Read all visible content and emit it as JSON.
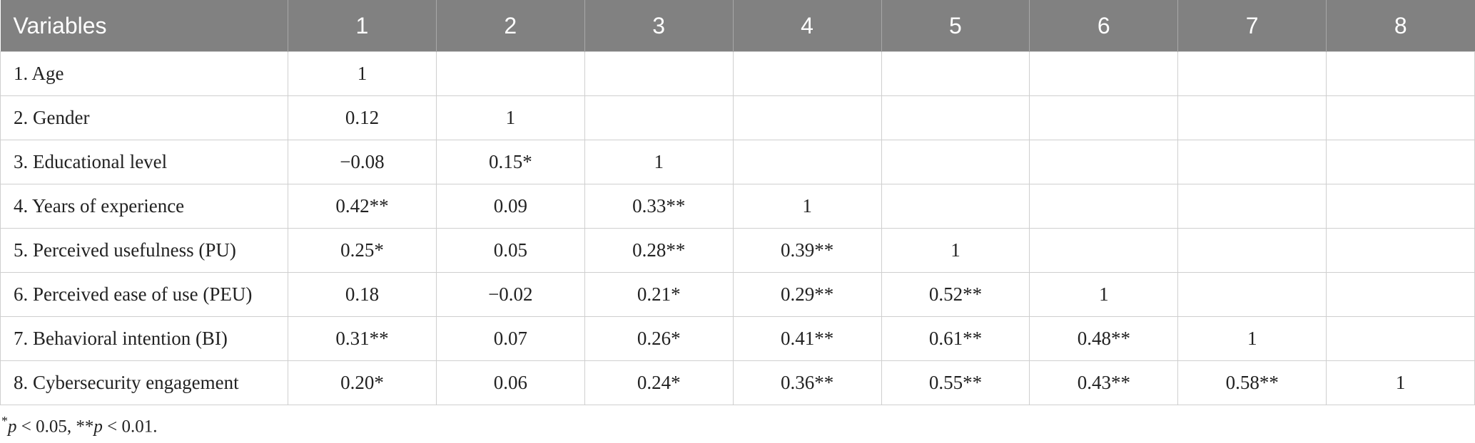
{
  "table": {
    "header": [
      "Variables",
      "1",
      "2",
      "3",
      "4",
      "5",
      "6",
      "7",
      "8"
    ],
    "rows": [
      [
        "1. Age",
        "1"
      ],
      [
        "2. Gender",
        "0.12",
        "1"
      ],
      [
        "3. Educational level",
        "−0.08",
        "0.15*",
        "1"
      ],
      [
        "4. Years of experience",
        "0.42**",
        "0.09",
        "0.33**",
        "1"
      ],
      [
        "5. Perceived usefulness (PU)",
        "0.25*",
        "0.05",
        "0.28**",
        "0.39**",
        "1"
      ],
      [
        "6. Perceived ease of use (PEU)",
        "0.18",
        "−0.02",
        "0.21*",
        "0.29**",
        "0.52**",
        "1"
      ],
      [
        "7. Behavioral intention (BI)",
        "0.31**",
        "0.07",
        "0.26*",
        "0.41**",
        "0.61**",
        "0.48**",
        "1"
      ],
      [
        "8. Cybersecurity engagement",
        "0.20*",
        "0.06",
        "0.24*",
        "0.36**",
        "0.55**",
        "0.43**",
        "0.58**",
        "1"
      ]
    ]
  },
  "footnote": [
    "*",
    "p",
    " < 0.05, **",
    "p",
    " < 0.01."
  ]
}
